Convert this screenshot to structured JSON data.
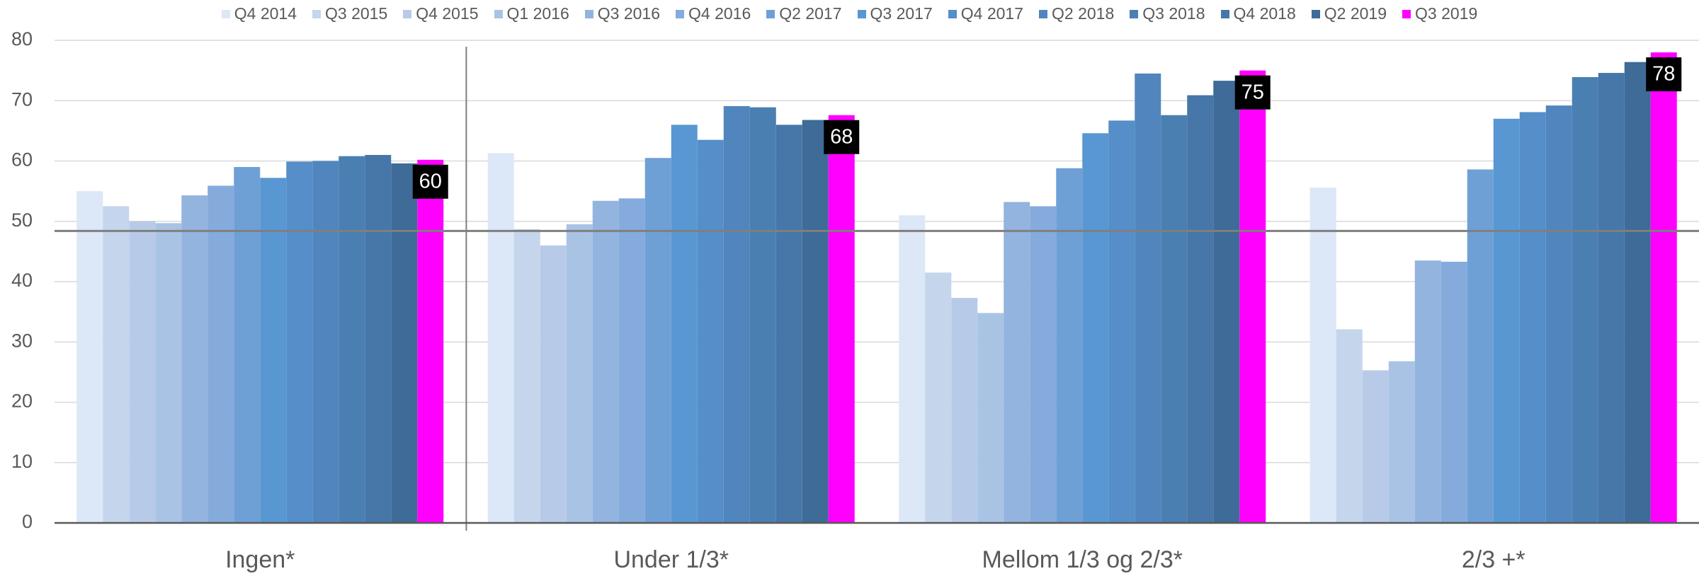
{
  "chart_data": {
    "type": "bar",
    "categories": [
      "Ingen*",
      "Under 1/3*",
      "Mellom 1/3 og 2/3*",
      "2/3 +*"
    ],
    "series": [
      {
        "name": "Q4 2014",
        "color": "#dce8f8",
        "values": [
          55,
          61.3,
          51,
          55.6
        ]
      },
      {
        "name": "Q3 2015",
        "color": "#c5d5ec",
        "values": [
          52.5,
          48.7,
          41.5,
          32.1
        ]
      },
      {
        "name": "Q4 2015",
        "color": "#b7cbe8",
        "values": [
          50,
          46,
          37.3,
          25.3
        ]
      },
      {
        "name": "Q1 2016",
        "color": "#a9c3e5",
        "values": [
          49.7,
          49.5,
          34.8,
          26.8
        ]
      },
      {
        "name": "Q3 2016",
        "color": "#93b4de",
        "values": [
          54.3,
          53.4,
          53.2,
          43.5
        ]
      },
      {
        "name": "Q4 2016",
        "color": "#84abdb",
        "values": [
          55.9,
          53.8,
          52.5,
          43.3
        ]
      },
      {
        "name": "Q2 2017",
        "color": "#6ea0d6",
        "values": [
          59,
          60.5,
          58.8,
          58.6
        ]
      },
      {
        "name": "Q3 2017",
        "color": "#5897d1",
        "values": [
          57.2,
          66,
          64.6,
          67
        ]
      },
      {
        "name": "Q4 2017",
        "color": "#558ec8",
        "values": [
          59.9,
          63.5,
          66.7,
          68.1
        ]
      },
      {
        "name": "Q2 2018",
        "color": "#5086bd",
        "values": [
          60,
          69.1,
          74.5,
          69.2
        ]
      },
      {
        "name": "Q3 2018",
        "color": "#4a7fb2",
        "values": [
          60.8,
          68.9,
          67.6,
          73.9
        ]
      },
      {
        "name": "Q4 2018",
        "color": "#4677a8",
        "values": [
          61,
          66,
          70.9,
          74.6
        ]
      },
      {
        "name": "Q2 2019",
        "color": "#3e6b98",
        "values": [
          59.6,
          66.8,
          73.3,
          76.4
        ]
      },
      {
        "name": "Q3 2019",
        "color": "#ff00ff",
        "values": [
          60.2,
          67.6,
          75,
          78
        ],
        "value_labels": [
          "60",
          "68",
          "75",
          "78"
        ]
      }
    ],
    "ylim": [
      0,
      80
    ],
    "yticks": [
      0,
      10,
      20,
      30,
      40,
      50,
      60,
      70,
      80
    ],
    "grid": true,
    "reference_line": 48.4
  }
}
